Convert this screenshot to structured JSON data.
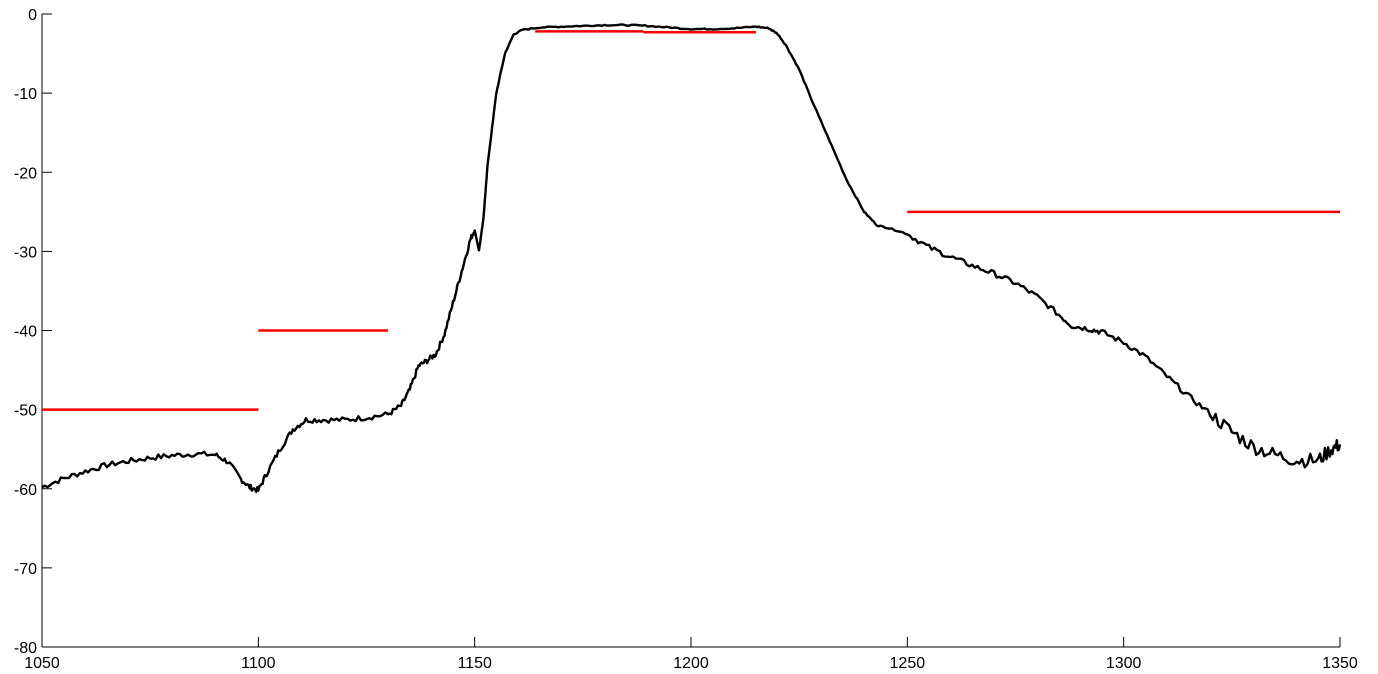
{
  "chart_data": {
    "type": "line",
    "title": "",
    "xlabel": "",
    "ylabel": "",
    "xlim": [
      1050,
      1350
    ],
    "ylim": [
      -80,
      0
    ],
    "grid": false,
    "x_ticks": [
      1050,
      1100,
      1150,
      1200,
      1250,
      1300,
      1350
    ],
    "y_ticks": [
      0,
      -10,
      -20,
      -30,
      -40,
      -50,
      -60,
      -70,
      -80
    ],
    "x_tick_labels": [
      "1050",
      "1100",
      "1150",
      "1200",
      "1250",
      "1300",
      "1350"
    ],
    "y_tick_labels": [
      "0",
      "-10",
      "-20",
      "-30",
      "-40",
      "-50",
      "-60",
      "-70",
      "-80"
    ],
    "series": [
      {
        "color": "#000000",
        "points": [
          [
            1050,
            -59.8
          ],
          [
            1055,
            -58.7
          ],
          [
            1060,
            -57.8
          ],
          [
            1065,
            -57.0
          ],
          [
            1070,
            -56.5
          ],
          [
            1075,
            -56.1
          ],
          [
            1080,
            -55.8
          ],
          [
            1085,
            -55.6
          ],
          [
            1090,
            -55.7
          ],
          [
            1093,
            -56.6
          ],
          [
            1096,
            -58.8
          ],
          [
            1098,
            -59.8
          ],
          [
            1100,
            -60.2
          ],
          [
            1102,
            -58.0
          ],
          [
            1105,
            -55.0
          ],
          [
            1108,
            -52.5
          ],
          [
            1111,
            -51.3
          ],
          [
            1115,
            -51.3
          ],
          [
            1120,
            -51.3
          ],
          [
            1125,
            -51.0
          ],
          [
            1130,
            -50.6
          ],
          [
            1133,
            -49.5
          ],
          [
            1135,
            -47.5
          ],
          [
            1137,
            -44.5
          ],
          [
            1139,
            -43.8
          ],
          [
            1141,
            -43.0
          ],
          [
            1143,
            -40.5
          ],
          [
            1145,
            -36.5
          ],
          [
            1147,
            -32.5
          ],
          [
            1149,
            -28.5
          ],
          [
            1150,
            -27.3
          ],
          [
            1151,
            -29.9
          ],
          [
            1152,
            -26.0
          ],
          [
            1153,
            -19.0
          ],
          [
            1155,
            -10.0
          ],
          [
            1157,
            -5.0
          ],
          [
            1159,
            -2.6
          ],
          [
            1161,
            -2.0
          ],
          [
            1165,
            -1.7
          ],
          [
            1170,
            -1.6
          ],
          [
            1175,
            -1.5
          ],
          [
            1180,
            -1.4
          ],
          [
            1185,
            -1.4
          ],
          [
            1190,
            -1.5
          ],
          [
            1195,
            -1.7
          ],
          [
            1200,
            -1.9
          ],
          [
            1205,
            -1.9
          ],
          [
            1210,
            -1.8
          ],
          [
            1215,
            -1.6
          ],
          [
            1218,
            -1.8
          ],
          [
            1220,
            -2.5
          ],
          [
            1222,
            -4.0
          ],
          [
            1225,
            -7.0
          ],
          [
            1228,
            -11.0
          ],
          [
            1232,
            -16.0
          ],
          [
            1236,
            -21.0
          ],
          [
            1240,
            -25.0
          ],
          [
            1243,
            -26.7
          ],
          [
            1246,
            -27.1
          ],
          [
            1250,
            -27.8
          ],
          [
            1255,
            -29.5
          ],
          [
            1260,
            -30.7
          ],
          [
            1265,
            -31.8
          ],
          [
            1270,
            -32.8
          ],
          [
            1275,
            -34.0
          ],
          [
            1280,
            -35.7
          ],
          [
            1285,
            -38.0
          ],
          [
            1288,
            -39.4
          ],
          [
            1292,
            -39.8
          ],
          [
            1295,
            -40.2
          ],
          [
            1300,
            -41.5
          ],
          [
            1305,
            -43.3
          ],
          [
            1310,
            -45.8
          ],
          [
            1315,
            -48.3
          ],
          [
            1320,
            -50.5
          ],
          [
            1325,
            -52.8
          ],
          [
            1330,
            -54.7
          ],
          [
            1335,
            -55.7
          ],
          [
            1340,
            -56.4
          ],
          [
            1345,
            -56.4
          ],
          [
            1348,
            -55.0
          ],
          [
            1350,
            -54.4
          ]
        ]
      }
    ],
    "limit_lines": [
      {
        "color": "#ff0000",
        "x": [
          1050,
          1100
        ],
        "y": -50
      },
      {
        "color": "#ff0000",
        "x": [
          1100,
          1130
        ],
        "y": -40
      },
      {
        "color": "#ff0000",
        "x": [
          1164,
          1189
        ],
        "y": -2.2
      },
      {
        "color": "#ff0000",
        "x": [
          1189,
          1215
        ],
        "y": -2.3
      },
      {
        "color": "#ff0000",
        "x": [
          1250,
          1350
        ],
        "y": -25
      }
    ]
  }
}
